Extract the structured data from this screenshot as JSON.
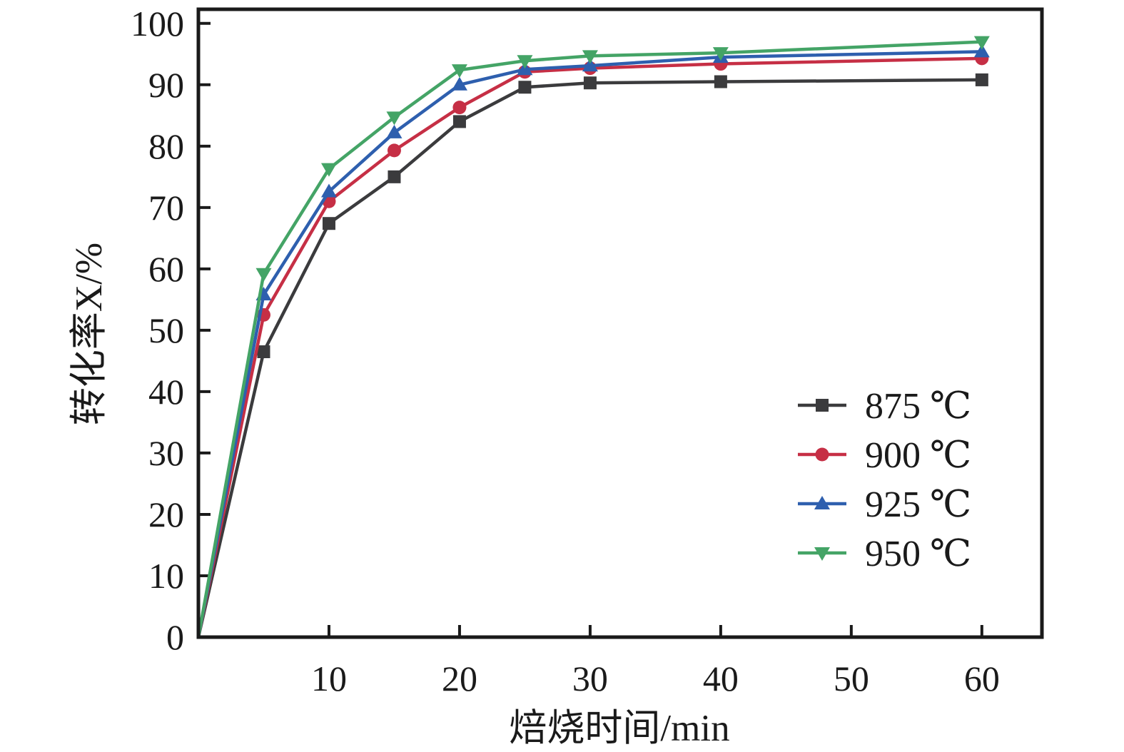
{
  "figure": {
    "background_color": "#ffffff",
    "axis_color": "#1a1a1a"
  },
  "chart_data": {
    "type": "line",
    "title": "",
    "xlabel": "焙烧时间/min",
    "ylabel": "转化率X/%",
    "xlim": [
      0,
      64.6
    ],
    "ylim": [
      0,
      102.3
    ],
    "xticks": [
      10,
      20,
      30,
      40,
      50,
      60
    ],
    "yticks": [
      0,
      10,
      20,
      30,
      40,
      50,
      60,
      70,
      80,
      90,
      100
    ],
    "grid": false,
    "legend_position": "inside-right-middle",
    "x": [
      0,
      5,
      10,
      15,
      20,
      25,
      30,
      40,
      60
    ],
    "series": [
      {
        "name": "875 ℃",
        "color": "#3b3b3d",
        "marker": "square-icon",
        "values": [
          0,
          46.5,
          67.4,
          75.0,
          84.0,
          89.6,
          90.3,
          90.5,
          90.8
        ]
      },
      {
        "name": "900 ℃",
        "color": "#c62f45",
        "marker": "circle-icon",
        "values": [
          0,
          52.5,
          71.0,
          79.3,
          86.3,
          92.1,
          92.7,
          93.4,
          94.3
        ]
      },
      {
        "name": "925 ℃",
        "color": "#2e5fae",
        "marker": "triangle-up-icon",
        "values": [
          0,
          55.8,
          72.6,
          82.2,
          90.0,
          92.5,
          93.1,
          94.5,
          95.4
        ]
      },
      {
        "name": "950 ℃",
        "color": "#44a466",
        "marker": "triangle-down-icon",
        "values": [
          0,
          59.2,
          76.3,
          84.7,
          92.4,
          93.9,
          94.7,
          95.2,
          97.0
        ]
      }
    ]
  }
}
